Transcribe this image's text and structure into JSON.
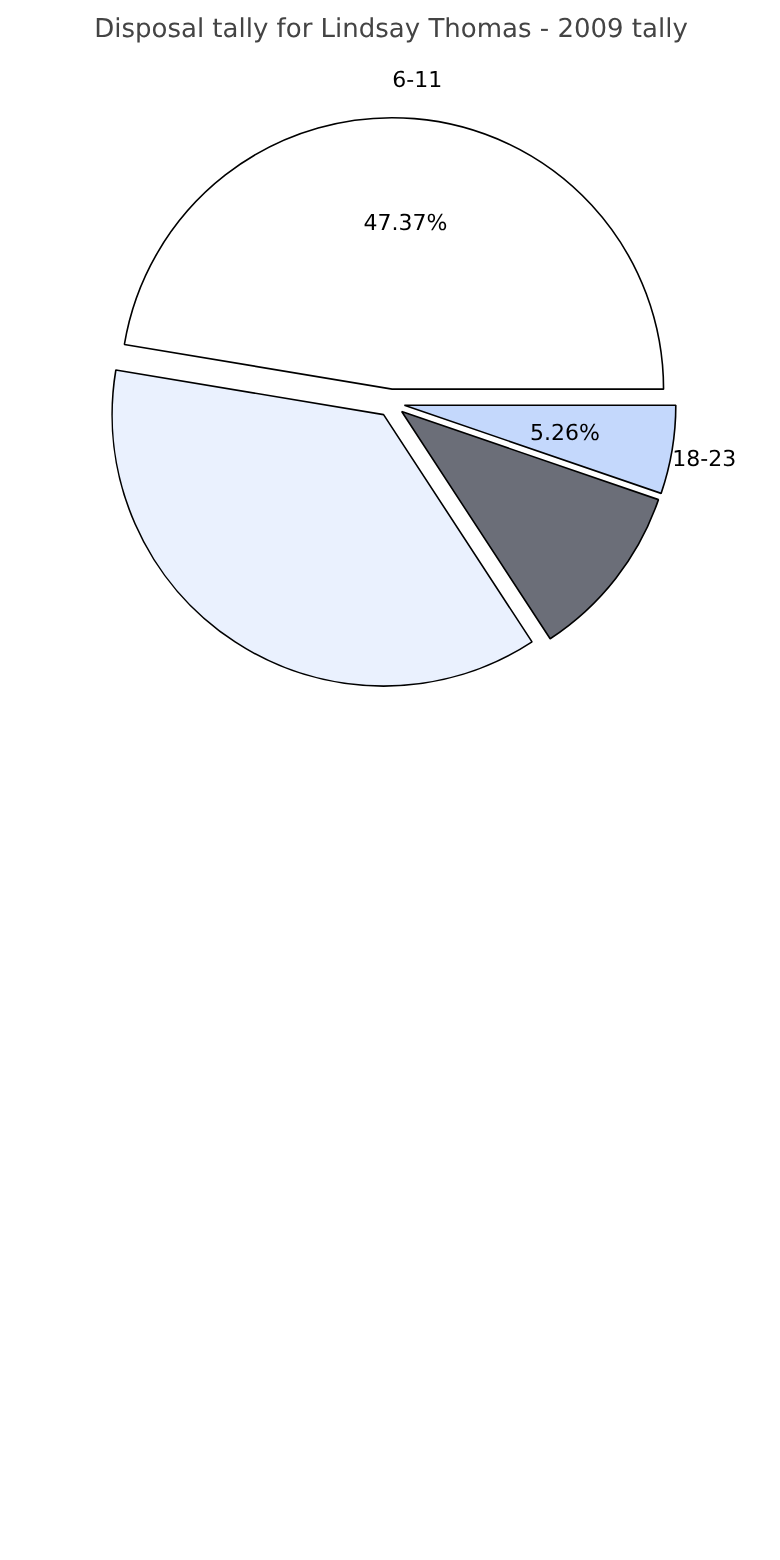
{
  "chart_data": {
    "type": "pie",
    "title": "Disposal tally for Lindsay Thomas - 2009 tally",
    "categories": [
      "6-11",
      null,
      null,
      "18-23"
    ],
    "values": [
      47.37,
      36.84,
      10.53,
      5.26
    ],
    "colors": [
      "#ffffff",
      "#eaf1fe",
      "#6b6e78",
      "#c4d8fc"
    ],
    "value_labels": [
      "47.37%",
      null,
      null,
      "5.26%"
    ]
  }
}
